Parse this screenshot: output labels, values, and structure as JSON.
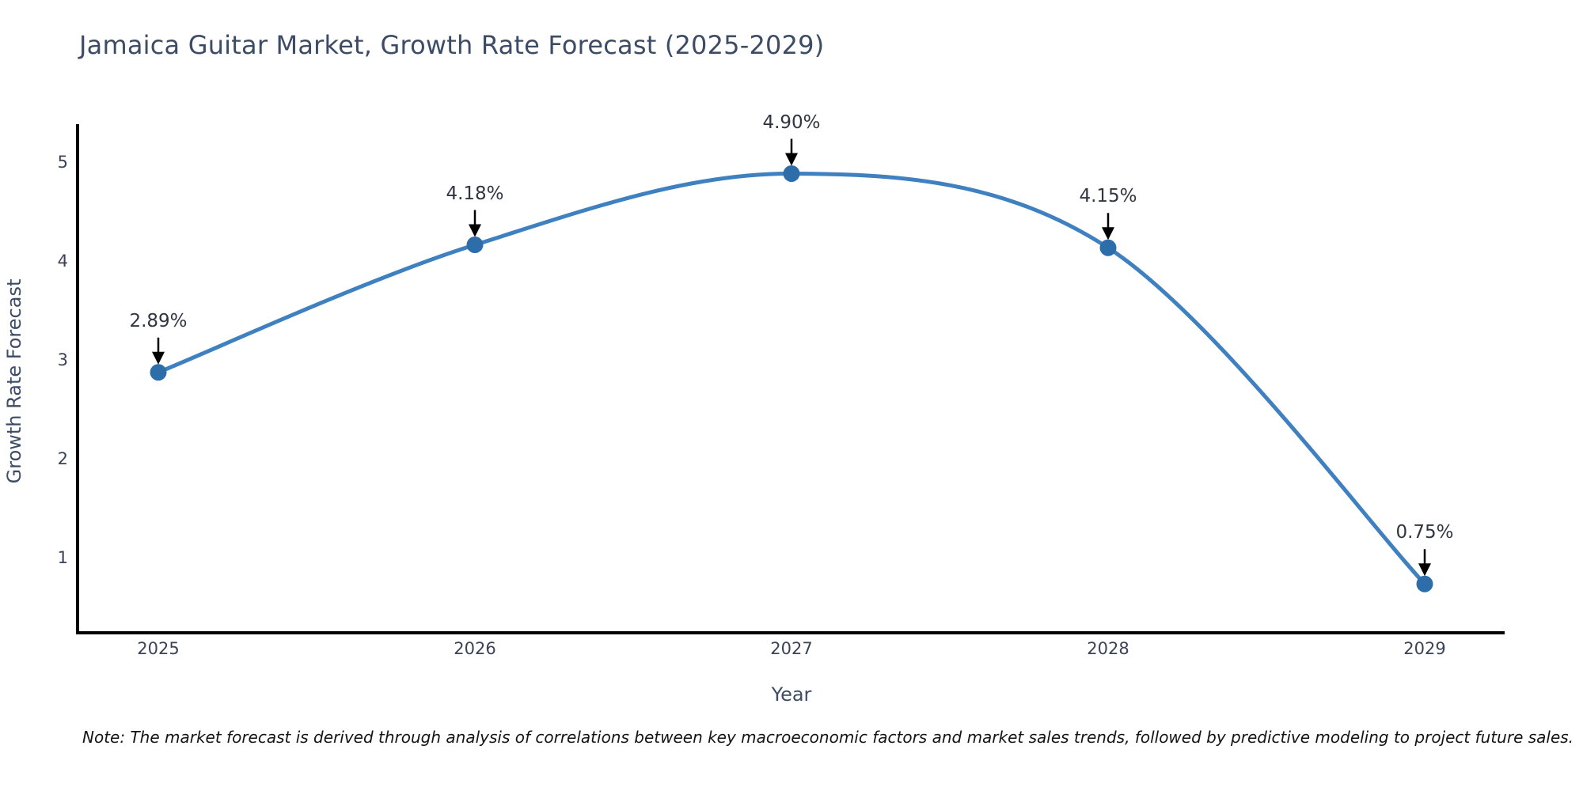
{
  "title": "Jamaica Guitar Market, Growth Rate Forecast (2025-2029)",
  "footnote": "Note: The market forecast is derived through analysis of correlations between key macroeconomic factors and market sales trends, followed by predictive modeling to project future sales.",
  "chart_data": {
    "type": "line",
    "title": "Jamaica Guitar Market, Growth Rate Forecast (2025-2029)",
    "xlabel": "Year",
    "ylabel": "Growth Rate Forecast",
    "categories": [
      2025,
      2026,
      2027,
      2028,
      2029
    ],
    "values": [
      2.89,
      4.18,
      4.9,
      4.15,
      0.75
    ],
    "point_labels": [
      "2.89%",
      "4.18%",
      "4.90%",
      "4.15%",
      "0.75%"
    ],
    "yticks": [
      1,
      2,
      3,
      4,
      5
    ],
    "ylim": [
      0.26,
      5.38
    ],
    "xlim": [
      2024.74,
      2029.26
    ],
    "grid": false,
    "legend": "none",
    "line_shape": "spline",
    "annotation_style": "value labels with black down-arrows pointing at markers",
    "colors": {
      "line": "#3e80c0",
      "marker": "#2d6da9",
      "arrow": "#000000",
      "axis": "#000000",
      "title_text": "#3d4c66",
      "tick_text": "#3a4355",
      "note_text": "#141414",
      "background": "#ffffff"
    }
  }
}
